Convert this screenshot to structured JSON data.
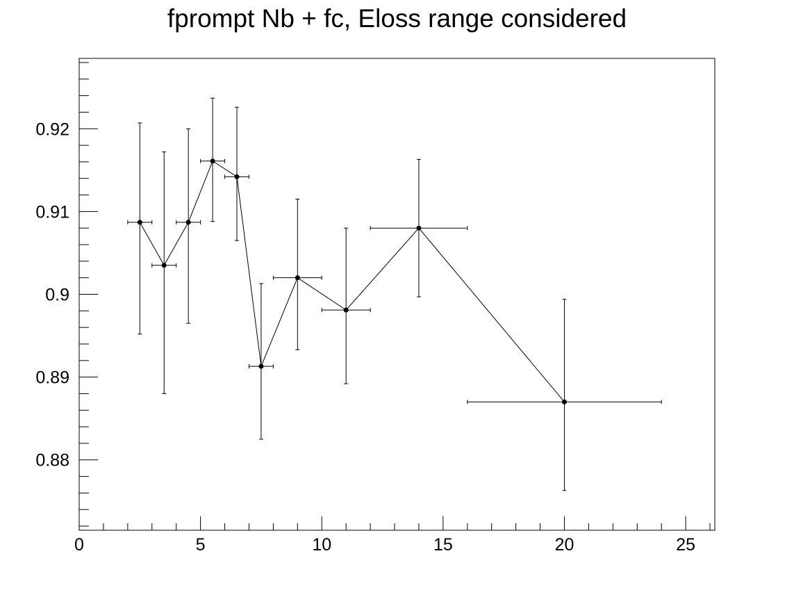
{
  "chart_data": {
    "type": "scatter",
    "title": "fprompt Nb + fc, Eloss range considered",
    "xlabel": "",
    "ylabel": "",
    "xlim": [
      0,
      26.2
    ],
    "ylim": [
      0.8715,
      0.9285
    ],
    "x_ticks": [
      0,
      5,
      10,
      15,
      20,
      25
    ],
    "x_tick_labels": [
      "0",
      "5",
      "10",
      "15",
      "20",
      "25"
    ],
    "y_ticks": [
      0.88,
      0.89,
      0.9,
      0.91,
      0.92
    ],
    "y_tick_labels": [
      "0.88",
      "0.89",
      "0.9",
      "0.91",
      "0.92"
    ],
    "grid": false,
    "connected": true,
    "points": [
      {
        "x": 2.5,
        "y": 0.9087,
        "xerr": 0.5,
        "yerr_low": 0.0135,
        "yerr_high": 0.012
      },
      {
        "x": 3.5,
        "y": 0.9035,
        "xerr": 0.5,
        "yerr_low": 0.0155,
        "yerr_high": 0.0137
      },
      {
        "x": 4.5,
        "y": 0.9087,
        "xerr": 0.5,
        "yerr_low": 0.0122,
        "yerr_high": 0.0113
      },
      {
        "x": 5.5,
        "y": 0.9161,
        "xerr": 0.5,
        "yerr_low": 0.0073,
        "yerr_high": 0.0076
      },
      {
        "x": 6.5,
        "y": 0.9142,
        "xerr": 0.5,
        "yerr_low": 0.0077,
        "yerr_high": 0.0084
      },
      {
        "x": 7.5,
        "y": 0.8913,
        "xerr": 0.5,
        "yerr_low": 0.0088,
        "yerr_high": 0.01
      },
      {
        "x": 9.0,
        "y": 0.902,
        "xerr": 1.0,
        "yerr_low": 0.0087,
        "yerr_high": 0.0095
      },
      {
        "x": 11.0,
        "y": 0.8981,
        "xerr": 1.0,
        "yerr_low": 0.0089,
        "yerr_high": 0.0099
      },
      {
        "x": 14.0,
        "y": 0.908,
        "xerr": 2.0,
        "yerr_low": 0.0083,
        "yerr_high": 0.0083
      },
      {
        "x": 20.0,
        "y": 0.887,
        "xerr": 4.0,
        "yerr_low": 0.0107,
        "yerr_high": 0.0124
      }
    ],
    "series_color": "#000000"
  }
}
